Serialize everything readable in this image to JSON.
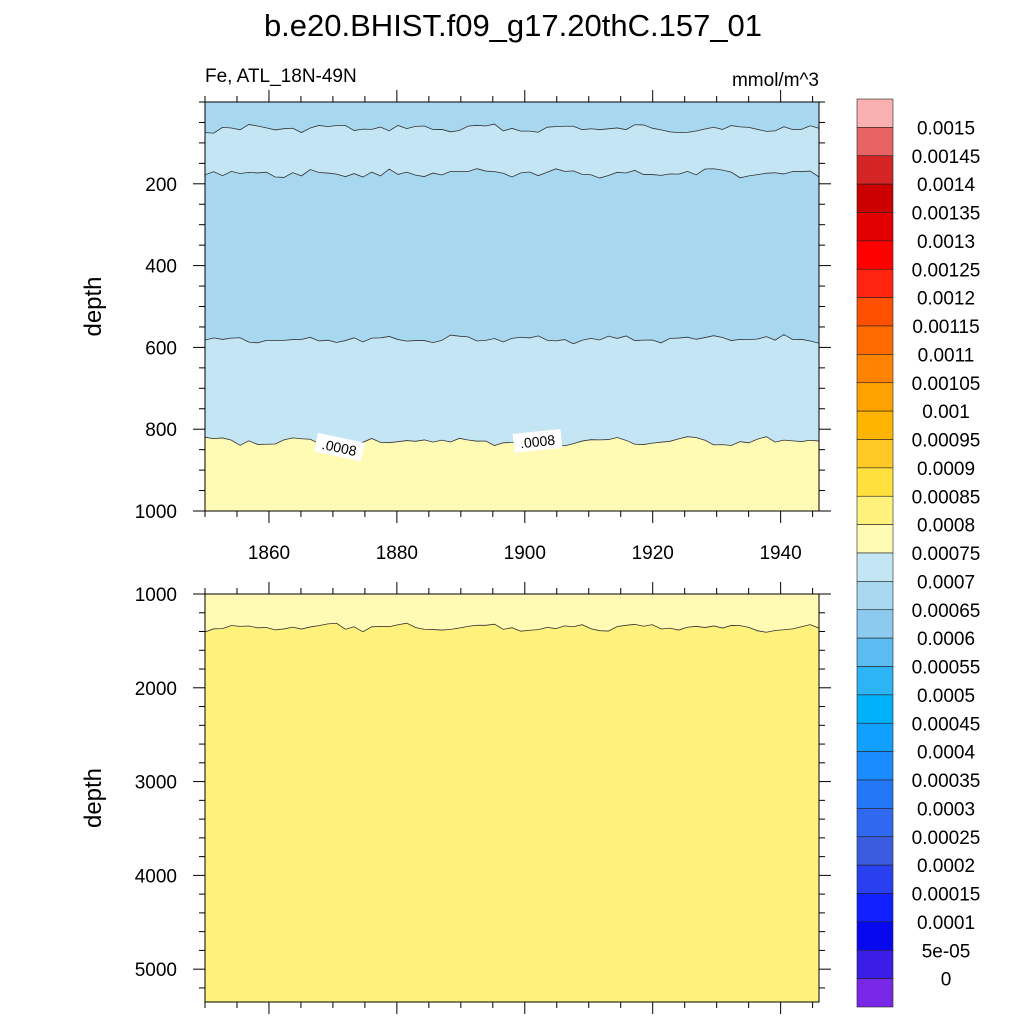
{
  "title": "b.e20.BHIST.f09_g17.20thC.157_01",
  "left_subtitle": "Fe, ATL_18N-49N",
  "right_subtitle": "mmol/m^3",
  "chart_data": [
    {
      "type": "heatmap",
      "panel": "upper",
      "ylabel": "depth",
      "xlim": [
        1850,
        1946
      ],
      "ylim": [
        1000,
        0
      ],
      "xticks": [
        1860,
        1880,
        1900,
        1920,
        1940
      ],
      "yticks": [
        200,
        400,
        600,
        800,
        1000
      ],
      "bands": [
        {
          "from_depth": 0,
          "to_depth": 65,
          "level": "0.0007"
        },
        {
          "from_depth": 65,
          "to_depth": 175,
          "level": "0.00075"
        },
        {
          "from_depth": 175,
          "to_depth": 580,
          "level": "0.0007"
        },
        {
          "from_depth": 580,
          "to_depth": 830,
          "level": "0.00075"
        },
        {
          "from_depth": 830,
          "to_depth": 1000,
          "level": "0.0008"
        }
      ],
      "contour_labels": [
        {
          "text": ".0008",
          "year": 1871,
          "depth": 845
        },
        {
          "text": ".0008",
          "year": 1902,
          "depth": 830
        }
      ]
    },
    {
      "type": "heatmap",
      "panel": "lower",
      "ylabel": "depth",
      "xlim": [
        1850,
        1946
      ],
      "ylim": [
        5350,
        1000
      ],
      "xticks": [
        1860,
        1880,
        1900,
        1920,
        1940
      ],
      "yticks": [
        1000,
        2000,
        3000,
        4000,
        5000
      ],
      "bands": [
        {
          "from_depth": 1000,
          "to_depth": 1360,
          "level": "0.0008"
        },
        {
          "from_depth": 1360,
          "to_depth": 5350,
          "level": "0.00085"
        }
      ]
    }
  ],
  "colorbar": {
    "labels": [
      "0.0015",
      "0.00145",
      "0.0014",
      "0.00135",
      "0.0013",
      "0.00125",
      "0.0012",
      "0.00115",
      "0.0011",
      "0.00105",
      "0.001",
      "0.00095",
      "0.0009",
      "0.00085",
      "0.0008",
      "0.00075",
      "0.0007",
      "0.00065",
      "0.0006",
      "0.00055",
      "0.0005",
      "0.00045",
      "0.0004",
      "0.00035",
      "0.0003",
      "0.00025",
      "0.0002",
      "0.00015",
      "0.0001",
      "5e-05",
      "0"
    ],
    "colors": [
      "#f9b0b0",
      "#e86464",
      "#d42424",
      "#cc0000",
      "#e30000",
      "#ff0000",
      "#ff2410",
      "#ff5000",
      "#ff6a00",
      "#ff8200",
      "#ffa200",
      "#ffb400",
      "#ffc824",
      "#ffe03c",
      "#fff27c",
      "#fffab4",
      "#c4e6f4",
      "#a8d8f0",
      "#8ccaef",
      "#5cbcf2",
      "#2cb4f4",
      "#00b0f8",
      "#10a0ff",
      "#1a8cff",
      "#2478f8",
      "#3068f0",
      "#3c5ce0",
      "#2840f0",
      "#1020ff",
      "#0808f0",
      "#3a1ee8",
      "#7a28e8"
    ]
  }
}
